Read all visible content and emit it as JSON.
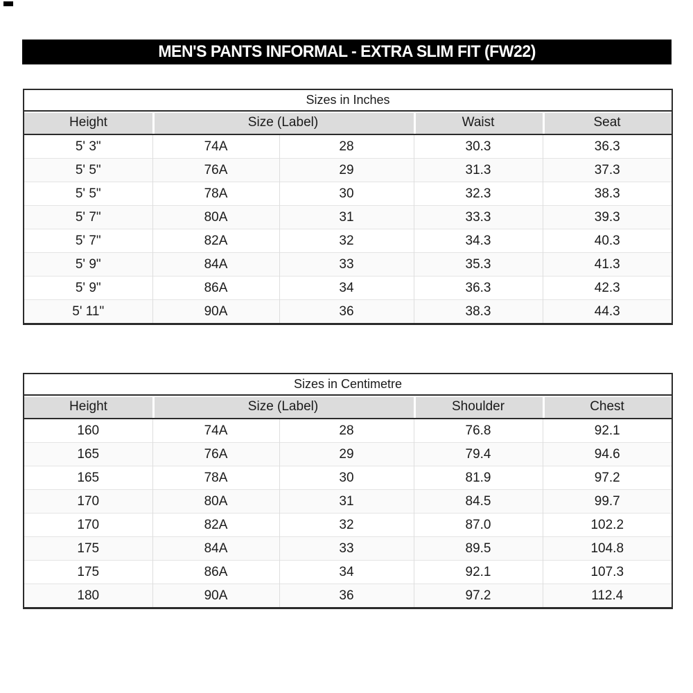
{
  "title_bar": {
    "text": "MEN'S PANTS INFORMAL - EXTRA SLIM FIT (FW22)"
  },
  "colors": {
    "title_bar_bg": "#000000",
    "title_bar_text": "#ffffff",
    "header_fill": "#dcdcdc",
    "border_dark": "#2b2b2b",
    "grid_light": "#e4e4e4"
  },
  "tables": [
    {
      "title": "Sizes in Inches",
      "headers": [
        "Height",
        "Size (Label)",
        "Waist",
        "Seat"
      ],
      "rows": [
        [
          "5' 3\"",
          "74A",
          "28",
          "30.3",
          "36.3"
        ],
        [
          "5' 5\"",
          "76A",
          "29",
          "31.3",
          "37.3"
        ],
        [
          "5' 5\"",
          "78A",
          "30",
          "32.3",
          "38.3"
        ],
        [
          "5' 7\"",
          "80A",
          "31",
          "33.3",
          "39.3"
        ],
        [
          "5' 7\"",
          "82A",
          "32",
          "34.3",
          "40.3"
        ],
        [
          "5' 9\"",
          "84A",
          "33",
          "35.3",
          "41.3"
        ],
        [
          "5' 9\"",
          "86A",
          "34",
          "36.3",
          "42.3"
        ],
        [
          "5' 11\"",
          "90A",
          "36",
          "38.3",
          "44.3"
        ]
      ]
    },
    {
      "title": "Sizes in Centimetre",
      "headers": [
        "Height",
        "Size (Label)",
        "Shoulder",
        "Chest"
      ],
      "rows": [
        [
          "160",
          "74A",
          "28",
          "76.8",
          "92.1"
        ],
        [
          "165",
          "76A",
          "29",
          "79.4",
          "94.6"
        ],
        [
          "165",
          "78A",
          "30",
          "81.9",
          "97.2"
        ],
        [
          "170",
          "80A",
          "31",
          "84.5",
          "99.7"
        ],
        [
          "170",
          "82A",
          "32",
          "87.0",
          "102.2"
        ],
        [
          "175",
          "84A",
          "33",
          "89.5",
          "104.8"
        ],
        [
          "175",
          "86A",
          "34",
          "92.1",
          "107.3"
        ],
        [
          "180",
          "90A",
          "36",
          "97.2",
          "112.4"
        ]
      ]
    }
  ]
}
